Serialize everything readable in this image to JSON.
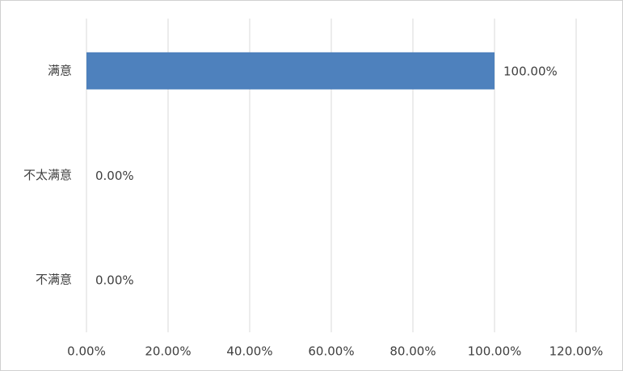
{
  "chart_data": {
    "type": "barh",
    "categories": [
      "满意",
      "不太满意",
      "不满意"
    ],
    "values": [
      100,
      0,
      0
    ],
    "value_labels": [
      "100.00%",
      "0.00%",
      "0.00%"
    ],
    "color": "#4e81bd",
    "xlim": [
      0,
      120
    ],
    "xticks": [
      {
        "value": 0,
        "label": "0.00%"
      },
      {
        "value": 20,
        "label": "20.00%"
      },
      {
        "value": 40,
        "label": "40.00%"
      },
      {
        "value": 60,
        "label": "60.00%"
      },
      {
        "value": 80,
        "label": "80.00%"
      },
      {
        "value": 100,
        "label": "100.00%"
      },
      {
        "value": 120,
        "label": "120.00%"
      }
    ],
    "grid": true
  }
}
